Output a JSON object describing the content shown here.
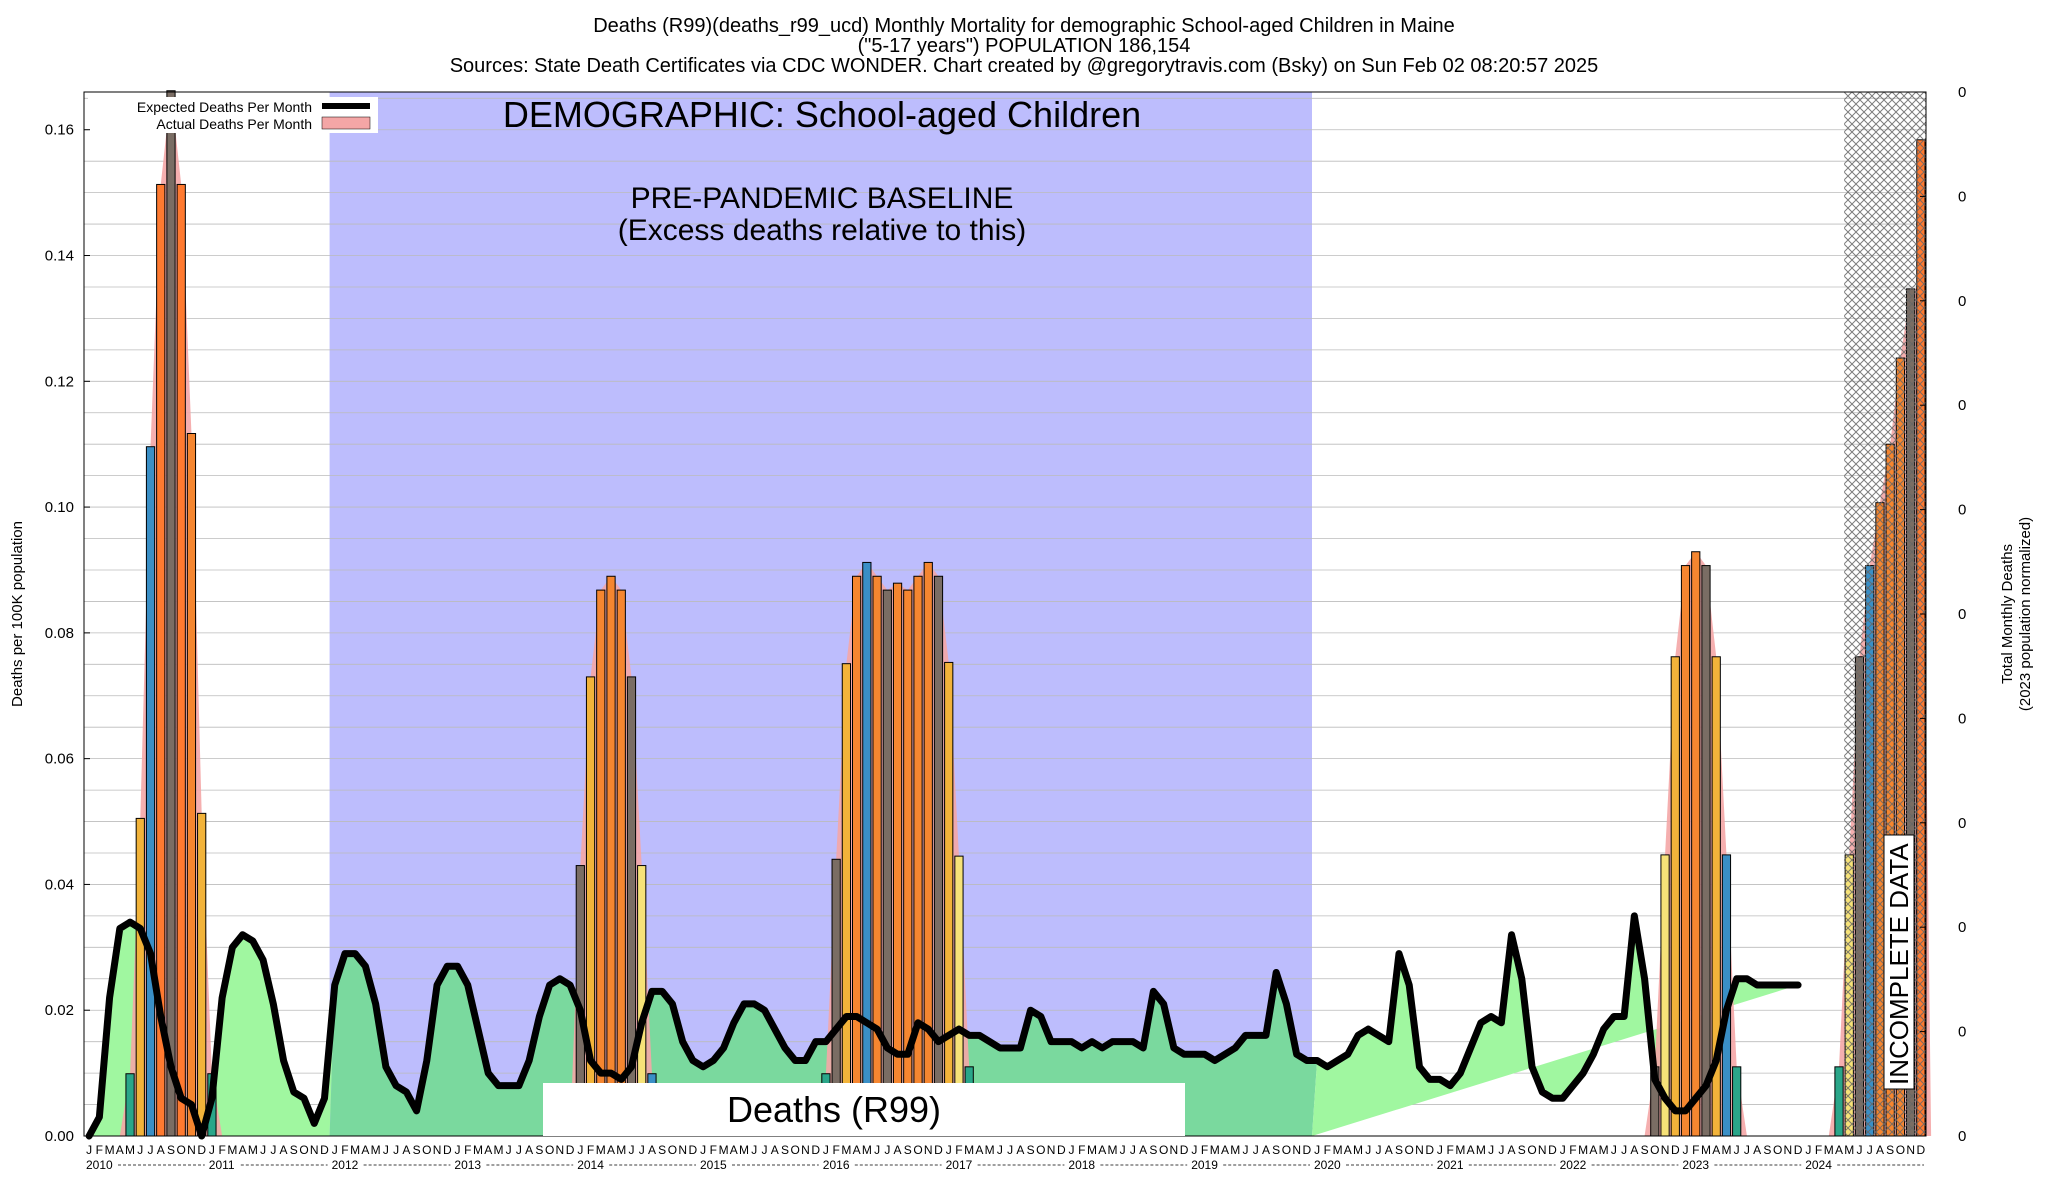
{
  "titles": {
    "line1": "Deaths (R99)(deaths_r99_ucd) Monthly Mortality for demographic School-aged Children in Maine",
    "line2": "(\"5-17 years\") POPULATION 186,154",
    "line3": "Sources: State Death Certificates via CDC WONDER.            Chart created by @gregorytravis.com (Bsky) on Sun Feb 02 08:20:57 2025"
  },
  "labels": {
    "demographic": "DEMOGRAPHIC: School-aged Children",
    "baseline_1": "PRE-PANDEMIC BASELINE",
    "baseline_2": "(Excess deaths relative to this)",
    "cause": "Deaths (R99)",
    "incomplete": "INCOMPLETE DATA",
    "ylabel": "Deaths per 100K population",
    "y2label_1": "Total Monthly Deaths",
    "y2label_2": "(2023 population normalized)"
  },
  "legend": [
    {
      "label": "Expected Deaths Per Month",
      "swatch": "line",
      "color": "#000000"
    },
    {
      "label": "Actual Deaths Per Month",
      "swatch": "box",
      "color": "#f4a6a6"
    }
  ],
  "colors": {
    "baseline_band": "#bdbdfd",
    "expected_line": "#000000",
    "expected_fill_light": "#a0f7a0",
    "expected_fill_baseline": "#7ad99e",
    "actual_fill": "#f4a6a6",
    "bar_palette": [
      "#f6e278",
      "#f2b33a",
      "#f58630",
      "#ff7a30",
      "#7a6d64",
      "#3a8fc6",
      "#2aa689"
    ],
    "hatch": "#777777"
  },
  "chart_data": {
    "type": "bar",
    "title": "Deaths (R99)(deaths_r99_ucd) Monthly Mortality for demographic School-aged Children in Maine",
    "ylabel": "Deaths per 100K population",
    "y2label": "Total Monthly Deaths (2023 population normalized)",
    "ylim": [
      0,
      0.166
    ],
    "y_ticks": [
      0.0,
      0.02,
      0.04,
      0.06,
      0.08,
      0.1,
      0.12,
      0.14,
      0.16
    ],
    "y_tick_labels": [
      "0.00",
      "0.02",
      "0.04",
      "0.06",
      "0.08",
      "0.10",
      "0.12",
      "0.14",
      "0.16"
    ],
    "y2_tick_labels": [
      "0",
      "0",
      "0",
      "0",
      "0",
      "0",
      "0",
      "0",
      "0",
      "0",
      "0"
    ],
    "grid": true,
    "legend_position": "top-left",
    "x_start": "2010-01",
    "x_end": "2024-12",
    "years": [
      "2010",
      "2011",
      "2012",
      "2013",
      "2014",
      "2015",
      "2016",
      "2017",
      "2018",
      "2019",
      "2020",
      "2021",
      "2022",
      "2023",
      "2024"
    ],
    "month_letters": [
      "J",
      "F",
      "M",
      "A",
      "M",
      "J",
      "J",
      "A",
      "S",
      "O",
      "N",
      "D"
    ],
    "baseline_period": [
      "2012-01",
      "2019-12"
    ],
    "incomplete_period": [
      "2024-05",
      "2024-12"
    ],
    "series": [
      {
        "name": "Expected Deaths Per Month",
        "type": "line",
        "values": [
          0.0,
          0.003,
          0.022,
          0.033,
          0.034,
          0.033,
          0.029,
          0.019,
          0.011,
          0.006,
          0.005,
          0.0,
          0.006,
          0.022,
          0.03,
          0.032,
          0.031,
          0.028,
          0.021,
          0.012,
          0.007,
          0.006,
          0.002,
          0.006,
          0.024,
          0.029,
          0.029,
          0.027,
          0.021,
          0.011,
          0.008,
          0.007,
          0.004,
          0.012,
          0.024,
          0.027,
          0.027,
          0.024,
          0.017,
          0.01,
          0.008,
          0.008,
          0.008,
          0.012,
          0.019,
          0.024,
          0.025,
          0.024,
          0.02,
          0.012,
          0.01,
          0.01,
          0.009,
          0.011,
          0.018,
          0.023,
          0.023,
          0.021,
          0.015,
          0.012,
          0.011,
          0.012,
          0.014,
          0.018,
          0.021,
          0.021,
          0.02,
          0.017,
          0.014,
          0.012,
          0.012,
          0.015,
          0.015,
          0.017,
          0.019,
          0.019,
          0.018,
          0.017,
          0.014,
          0.013,
          0.013,
          0.018,
          0.017,
          0.015,
          0.016,
          0.017,
          0.016,
          0.016,
          0.015,
          0.014,
          0.014,
          0.014,
          0.02,
          0.019,
          0.015,
          0.015,
          0.015,
          0.014,
          0.015,
          0.014,
          0.015,
          0.015,
          0.015,
          0.014,
          0.023,
          0.021,
          0.014,
          0.013,
          0.013,
          0.013,
          0.012,
          0.013,
          0.014,
          0.016,
          0.016,
          0.016,
          0.026,
          0.021,
          0.013,
          0.012,
          0.012,
          0.011,
          0.012,
          0.013,
          0.016,
          0.017,
          0.016,
          0.015,
          0.029,
          0.024,
          0.011,
          0.009,
          0.009,
          0.008,
          0.01,
          0.014,
          0.018,
          0.019,
          0.018,
          0.032,
          0.025,
          0.011,
          0.007,
          0.006,
          0.006,
          0.008,
          0.01,
          0.013,
          0.017,
          0.019,
          0.019,
          0.035,
          0.025,
          0.009,
          0.006,
          0.004,
          0.004,
          0.006,
          0.008,
          0.012,
          0.02,
          0.025,
          0.025,
          0.024,
          0.024,
          0.024,
          0.024,
          0.024
        ]
      },
      {
        "name": "Actual Deaths Per Month",
        "type": "bar",
        "values": [
          0,
          0,
          0,
          0,
          0.0099,
          0.0505,
          0.1096,
          0.1513,
          0.1662,
          0.1513,
          0.1117,
          0.0513,
          0.0099,
          0,
          0,
          0,
          0,
          0,
          0,
          0,
          0,
          0,
          0,
          0,
          0,
          0,
          0,
          0,
          0,
          0,
          0,
          0,
          0,
          0,
          0,
          0,
          0,
          0,
          0,
          0,
          0,
          0,
          0,
          0,
          0,
          0,
          0,
          0,
          0.043,
          0.073,
          0.0868,
          0.089,
          0.0868,
          0.073,
          0.043,
          0.0099,
          0,
          0,
          0,
          0,
          0,
          0,
          0,
          0,
          0,
          0,
          0,
          0,
          0,
          0,
          0,
          0,
          0.0099,
          0.044,
          0.0751,
          0.089,
          0.0912,
          0.089,
          0.0868,
          0.0879,
          0.0868,
          0.089,
          0.0912,
          0.089,
          0.0753,
          0.0445,
          0.011,
          0,
          0,
          0,
          0,
          0,
          0,
          0,
          0,
          0,
          0,
          0,
          0,
          0,
          0,
          0,
          0,
          0,
          0,
          0,
          0,
          0,
          0,
          0,
          0,
          0,
          0,
          0,
          0,
          0,
          0,
          0,
          0,
          0,
          0,
          0,
          0,
          0,
          0,
          0,
          0,
          0,
          0,
          0,
          0,
          0,
          0,
          0,
          0,
          0,
          0,
          0,
          0,
          0,
          0,
          0,
          0,
          0,
          0,
          0,
          0,
          0,
          0,
          0,
          0,
          0,
          0,
          0.011,
          0.0447,
          0.0762,
          0.0907,
          0.0929,
          0.0907,
          0.0762,
          0.0447,
          0.011,
          0,
          0,
          0,
          0,
          0,
          0,
          0,
          0,
          0,
          0.011,
          0.0447,
          0.0762,
          0.0907,
          0.1007,
          0.11,
          0.1237,
          0.1347,
          0.1347
        ]
      }
    ],
    "incomplete_bars": [
      0.1584
    ]
  }
}
